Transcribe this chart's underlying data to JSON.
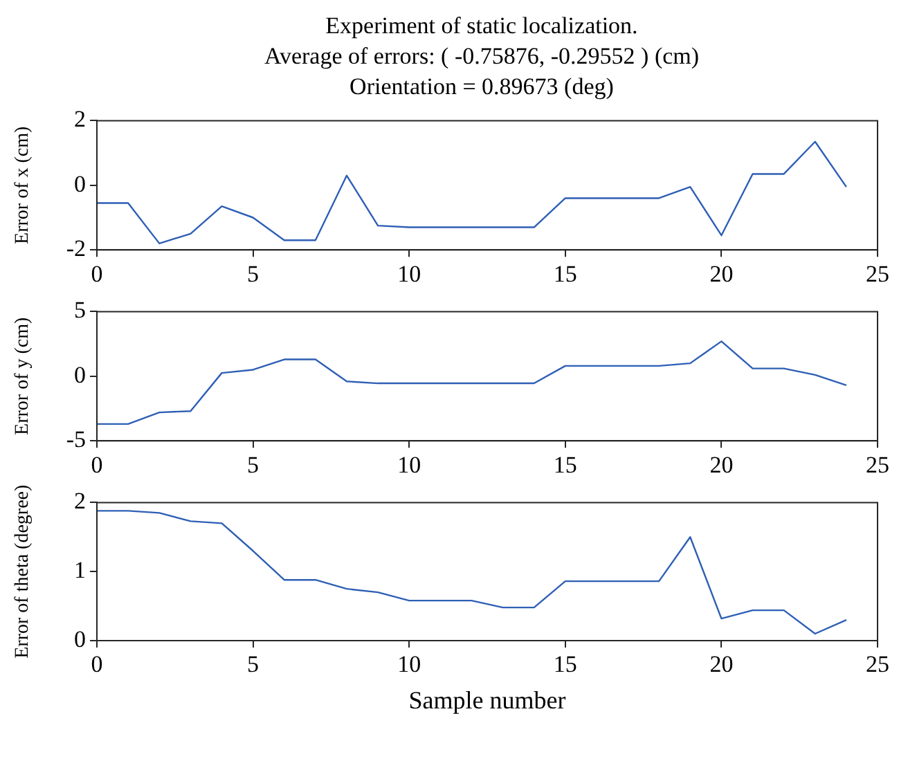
{
  "chart_data": [
    {
      "type": "line",
      "title": "Experiment of static localization.\nAverage of errors: ( -0.75876, -0.29552 ) (cm)\nOrientation = 0.89673 (deg)",
      "ylabel": "Error of x (cm)",
      "x": [
        0,
        1,
        2,
        3,
        4,
        5,
        6,
        7,
        8,
        9,
        10,
        11,
        12,
        13,
        14,
        15,
        16,
        17,
        18,
        19,
        20,
        21,
        22,
        23,
        24
      ],
      "series": [
        {
          "color": "#2e5fb5",
          "values": [
            -0.55,
            -0.55,
            -1.8,
            -1.5,
            -0.65,
            -1.0,
            -1.7,
            -1.7,
            0.3,
            -1.25,
            -1.3,
            -1.3,
            -1.3,
            -1.3,
            -1.3,
            -0.4,
            -0.4,
            -0.4,
            -0.4,
            -0.05,
            -1.55,
            0.35,
            0.35,
            1.35,
            -0.05
          ]
        }
      ],
      "xlim": [
        0,
        25
      ],
      "xticks": [
        0,
        5,
        10,
        15,
        20,
        25
      ],
      "ylim": [
        -2,
        2
      ],
      "yticks": [
        -2,
        0,
        2
      ],
      "grid": false,
      "legend": false,
      "marker": "none",
      "line_style": "solid"
    },
    {
      "type": "line",
      "ylabel": "Error of y (cm)",
      "x": [
        0,
        1,
        2,
        3,
        4,
        5,
        6,
        7,
        8,
        9,
        10,
        11,
        12,
        13,
        14,
        15,
        16,
        17,
        18,
        19,
        20,
        21,
        22,
        23,
        24
      ],
      "series": [
        {
          "color": "#2e5fb5",
          "values": [
            -3.7,
            -3.7,
            -2.8,
            -2.7,
            0.25,
            0.5,
            1.3,
            1.3,
            -0.4,
            -0.55,
            -0.55,
            -0.55,
            -0.55,
            -0.55,
            -0.55,
            0.8,
            0.8,
            0.8,
            0.8,
            1.0,
            2.7,
            0.6,
            0.6,
            0.1,
            -0.7
          ]
        }
      ],
      "xlim": [
        0,
        25
      ],
      "xticks": [
        0,
        5,
        10,
        15,
        20,
        25
      ],
      "ylim": [
        -5,
        5
      ],
      "yticks": [
        -5,
        0,
        5
      ],
      "grid": false,
      "legend": false,
      "marker": "none",
      "line_style": "solid"
    },
    {
      "type": "line",
      "xlabel": "Sample number",
      "ylabel": "Error of theta (degree)",
      "x": [
        0,
        1,
        2,
        3,
        4,
        5,
        6,
        7,
        8,
        9,
        10,
        11,
        12,
        13,
        14,
        15,
        16,
        17,
        18,
        19,
        20,
        21,
        22,
        23,
        24
      ],
      "series": [
        {
          "color": "#2e5fb5",
          "values": [
            1.88,
            1.88,
            1.85,
            1.73,
            1.7,
            1.3,
            0.88,
            0.88,
            0.75,
            0.7,
            0.58,
            0.58,
            0.58,
            0.48,
            0.48,
            0.86,
            0.86,
            0.86,
            0.86,
            1.5,
            0.32,
            0.44,
            0.44,
            0.1,
            0.3
          ]
        }
      ],
      "xlim": [
        0,
        25
      ],
      "xticks": [
        0,
        5,
        10,
        15,
        20,
        25
      ],
      "ylim": [
        0,
        2
      ],
      "yticks": [
        0,
        1,
        2
      ],
      "grid": false,
      "legend": false,
      "marker": "none",
      "line_style": "solid"
    }
  ]
}
